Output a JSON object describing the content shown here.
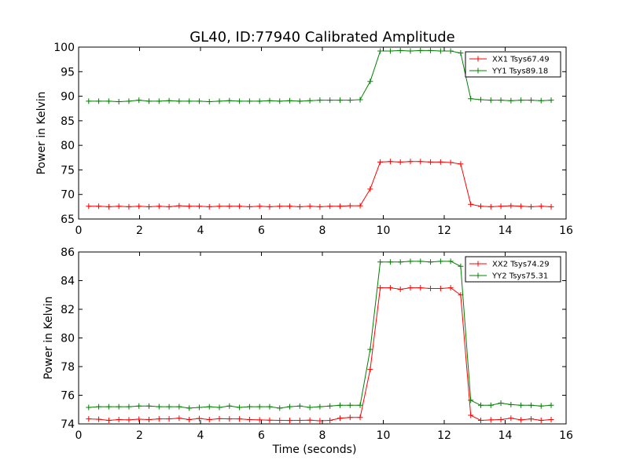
{
  "title": "GL40, ID:77940 Calibrated Amplitude",
  "colors": {
    "series1": "#ff0000",
    "series2": "#008000"
  },
  "chart_data": [
    {
      "type": "line",
      "title": "GL40, ID:77940 Calibrated Amplitude",
      "xlabel": "",
      "ylabel": "Power in Kelvin",
      "xlim": [
        0,
        16
      ],
      "ylim": [
        65,
        100
      ],
      "xticks": [
        0,
        2,
        4,
        6,
        8,
        10,
        12,
        14,
        16
      ],
      "yticks": [
        65,
        70,
        75,
        80,
        85,
        90,
        95,
        100
      ],
      "grid": false,
      "legend_position": "top-right",
      "marker": "plus",
      "series": [
        {
          "name": "XX1 Tsys67.49",
          "color": "#ff0000",
          "x": [
            0.33,
            0.66,
            0.99,
            1.32,
            1.65,
            1.98,
            2.31,
            2.64,
            2.97,
            3.3,
            3.63,
            3.96,
            4.29,
            4.62,
            4.95,
            5.28,
            5.61,
            5.94,
            6.27,
            6.6,
            6.93,
            7.26,
            7.59,
            7.92,
            8.25,
            8.58,
            8.91,
            9.24,
            9.57,
            9.9,
            10.23,
            10.56,
            10.89,
            11.22,
            11.55,
            11.88,
            12.21,
            12.54,
            12.87,
            13.2,
            13.53,
            13.86,
            14.19,
            14.52,
            14.85,
            15.18,
            15.51
          ],
          "y": [
            67.6,
            67.6,
            67.5,
            67.6,
            67.5,
            67.6,
            67.5,
            67.6,
            67.5,
            67.7,
            67.6,
            67.6,
            67.5,
            67.6,
            67.6,
            67.6,
            67.5,
            67.6,
            67.5,
            67.6,
            67.6,
            67.5,
            67.6,
            67.5,
            67.6,
            67.6,
            67.7,
            67.7,
            71.1,
            76.6,
            76.7,
            76.6,
            76.7,
            76.7,
            76.6,
            76.6,
            76.5,
            76.2,
            68.0,
            67.6,
            67.5,
            67.6,
            67.7,
            67.6,
            67.5,
            67.6,
            67.5
          ]
        },
        {
          "name": "YY1 Tsys89.18",
          "color": "#008000",
          "x": [
            0.33,
            0.66,
            0.99,
            1.32,
            1.65,
            1.98,
            2.31,
            2.64,
            2.97,
            3.3,
            3.63,
            3.96,
            4.29,
            4.62,
            4.95,
            5.28,
            5.61,
            5.94,
            6.27,
            6.6,
            6.93,
            7.26,
            7.59,
            7.92,
            8.25,
            8.58,
            8.91,
            9.24,
            9.57,
            9.9,
            10.23,
            10.56,
            10.89,
            11.22,
            11.55,
            11.88,
            12.21,
            12.54,
            12.87,
            13.2,
            13.53,
            13.86,
            14.19,
            14.52,
            14.85,
            15.18,
            15.51
          ],
          "y": [
            89.0,
            89.0,
            89.0,
            88.9,
            89.0,
            89.2,
            89.0,
            89.0,
            89.1,
            89.0,
            89.0,
            89.0,
            88.9,
            89.0,
            89.1,
            89.0,
            89.0,
            89.0,
            89.1,
            89.0,
            89.1,
            89.0,
            89.1,
            89.2,
            89.2,
            89.2,
            89.2,
            89.3,
            93.0,
            99.2,
            99.2,
            99.3,
            99.2,
            99.3,
            99.3,
            99.2,
            99.2,
            98.8,
            89.5,
            89.3,
            89.2,
            89.2,
            89.1,
            89.2,
            89.2,
            89.1,
            89.2
          ]
        }
      ]
    },
    {
      "type": "line",
      "title": "",
      "xlabel": "Time (seconds)",
      "ylabel": "Power in Kelvin",
      "xlim": [
        0,
        16
      ],
      "ylim": [
        74,
        86
      ],
      "xticks": [
        0,
        2,
        4,
        6,
        8,
        10,
        12,
        14,
        16
      ],
      "yticks": [
        74,
        76,
        78,
        80,
        82,
        84,
        86
      ],
      "grid": false,
      "legend_position": "top-right",
      "marker": "plus",
      "series": [
        {
          "name": "XX2 Tsys74.29",
          "color": "#ff0000",
          "x": [
            0.33,
            0.66,
            0.99,
            1.32,
            1.65,
            1.98,
            2.31,
            2.64,
            2.97,
            3.3,
            3.63,
            3.96,
            4.29,
            4.62,
            4.95,
            5.28,
            5.61,
            5.94,
            6.27,
            6.6,
            6.93,
            7.26,
            7.59,
            7.92,
            8.25,
            8.58,
            8.91,
            9.24,
            9.57,
            9.9,
            10.23,
            10.56,
            10.89,
            11.22,
            11.55,
            11.88,
            12.21,
            12.54,
            12.87,
            13.2,
            13.53,
            13.86,
            14.19,
            14.52,
            14.85,
            15.18,
            15.51
          ],
          "y": [
            74.35,
            74.32,
            74.25,
            74.3,
            74.28,
            74.33,
            74.3,
            74.35,
            74.35,
            74.4,
            74.3,
            74.38,
            74.3,
            74.36,
            74.35,
            74.35,
            74.3,
            74.28,
            74.26,
            74.25,
            74.24,
            74.25,
            74.26,
            74.22,
            74.25,
            74.4,
            74.45,
            74.45,
            77.8,
            83.5,
            83.5,
            83.4,
            83.5,
            83.5,
            83.45,
            83.45,
            83.5,
            83.0,
            74.6,
            74.25,
            74.28,
            74.3,
            74.4,
            74.28,
            74.35,
            74.25,
            74.3
          ]
        },
        {
          "name": "YY2 Tsys75.31",
          "color": "#008000",
          "x": [
            0.33,
            0.66,
            0.99,
            1.32,
            1.65,
            1.98,
            2.31,
            2.64,
            2.97,
            3.3,
            3.63,
            3.96,
            4.29,
            4.62,
            4.95,
            5.28,
            5.61,
            5.94,
            6.27,
            6.6,
            6.93,
            7.26,
            7.59,
            7.92,
            8.25,
            8.58,
            8.91,
            9.24,
            9.57,
            9.9,
            10.23,
            10.56,
            10.89,
            11.22,
            11.55,
            11.88,
            12.21,
            12.54,
            12.87,
            13.2,
            13.53,
            13.86,
            14.19,
            14.52,
            14.85,
            15.18,
            15.51
          ],
          "y": [
            75.15,
            75.2,
            75.2,
            75.2,
            75.2,
            75.25,
            75.25,
            75.2,
            75.2,
            75.2,
            75.1,
            75.15,
            75.2,
            75.15,
            75.25,
            75.15,
            75.2,
            75.2,
            75.2,
            75.1,
            75.2,
            75.25,
            75.15,
            75.2,
            75.25,
            75.3,
            75.3,
            75.3,
            79.2,
            85.3,
            85.3,
            85.3,
            85.35,
            85.35,
            85.3,
            85.35,
            85.35,
            85.0,
            75.65,
            75.3,
            75.3,
            75.45,
            75.35,
            75.3,
            75.3,
            75.25,
            75.3
          ]
        }
      ]
    }
  ]
}
